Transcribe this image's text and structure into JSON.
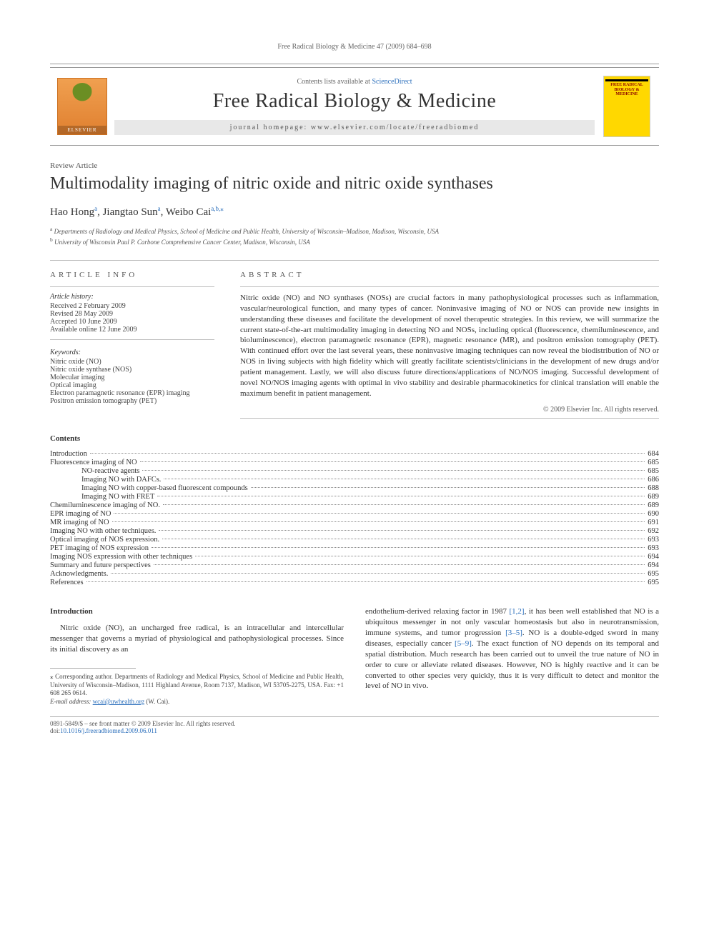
{
  "running_head": "Free Radical Biology & Medicine 47 (2009) 684–698",
  "header": {
    "contents_prefix": "Contents lists available at ",
    "contents_link": "ScienceDirect",
    "journal_title": "Free Radical Biology & Medicine",
    "homepage_label": "journal homepage: www.elsevier.com/locate/freeradbiomed",
    "elsevier_label": "ELSEVIER",
    "cover_text1": "FREE RADICAL",
    "cover_text2": "BIOLOGY & MEDICINE"
  },
  "article": {
    "type": "Review Article",
    "title": "Multimodality imaging of nitric oxide and nitric oxide synthases",
    "authors_html_parts": {
      "a1": "Hao Hong",
      "a1_sup": "a",
      "sep1": ", ",
      "a2": "Jiangtao Sun",
      "a2_sup": "a",
      "sep2": ", ",
      "a3": "Weibo Cai",
      "a3_sup": "a,b,",
      "star": "⁎"
    },
    "affiliations": [
      {
        "sup": "a",
        "text": "Departments of Radiology and Medical Physics, School of Medicine and Public Health, University of Wisconsin–Madison, Madison, Wisconsin, USA"
      },
      {
        "sup": "b",
        "text": "University of Wisconsin Paul P. Carbone Comprehensive Cancer Center, Madison, Wisconsin, USA"
      }
    ]
  },
  "info": {
    "label": "ARTICLE INFO",
    "history_head": "Article history:",
    "history": [
      "Received 2 February 2009",
      "Revised 28 May 2009",
      "Accepted 10 June 2009",
      "Available online 12 June 2009"
    ],
    "keywords_head": "Keywords:",
    "keywords": [
      "Nitric oxide (NO)",
      "Nitric oxide synthase (NOS)",
      "Molecular imaging",
      "Optical imaging",
      "Electron paramagnetic resonance (EPR) imaging",
      "Positron emission tomography (PET)"
    ]
  },
  "abstract": {
    "label": "ABSTRACT",
    "text": "Nitric oxide (NO) and NO synthases (NOSs) are crucial factors in many pathophysiological processes such as inflammation, vascular/neurological function, and many types of cancer. Noninvasive imaging of NO or NOS can provide new insights in understanding these diseases and facilitate the development of novel therapeutic strategies. In this review, we will summarize the current state-of-the-art multimodality imaging in detecting NO and NOSs, including optical (fluorescence, chemiluminescence, and bioluminescence), electron paramagnetic resonance (EPR), magnetic resonance (MR), and positron emission tomography (PET). With continued effort over the last several years, these noninvasive imaging techniques can now reveal the biodistribution of NO or NOS in living subjects with high fidelity which will greatly facilitate scientists/clinicians in the development of new drugs and/or patient management. Lastly, we will also discuss future directions/applications of NO/NOS imaging. Successful development of novel NO/NOS imaging agents with optimal in vivo stability and desirable pharmacokinetics for clinical translation will enable the maximum benefit in patient management.",
    "copyright": "© 2009 Elsevier Inc. All rights reserved."
  },
  "contents": {
    "head": "Contents",
    "items": [
      {
        "label": "Introduction",
        "page": "684",
        "indent": 0
      },
      {
        "label": "Fluorescence imaging of NO",
        "page": "685",
        "indent": 0
      },
      {
        "label": "NO-reactive agents",
        "page": "685",
        "indent": 2
      },
      {
        "label": "Imaging NO with DAFCs.",
        "page": "686",
        "indent": 2
      },
      {
        "label": "Imaging NO with copper-based fluorescent compounds",
        "page": "688",
        "indent": 2
      },
      {
        "label": "Imaging NO with FRET",
        "page": "689",
        "indent": 2
      },
      {
        "label": "Chemiluminescence imaging of NO.",
        "page": "689",
        "indent": 0
      },
      {
        "label": "EPR imaging of NO",
        "page": "690",
        "indent": 0
      },
      {
        "label": "MR imaging of NO",
        "page": "691",
        "indent": 0
      },
      {
        "label": "Imaging NO with other techniques.",
        "page": "692",
        "indent": 0
      },
      {
        "label": "Optical imaging of NOS expression.",
        "page": "693",
        "indent": 0
      },
      {
        "label": "PET imaging of NOS expression",
        "page": "693",
        "indent": 0
      },
      {
        "label": "Imaging NOS expression with other techniques",
        "page": "694",
        "indent": 0
      },
      {
        "label": "Summary and future perspectives",
        "page": "694",
        "indent": 0
      },
      {
        "label": "Acknowledgments.",
        "page": "695",
        "indent": 0
      },
      {
        "label": "References",
        "page": "695",
        "indent": 0
      }
    ]
  },
  "body": {
    "intro_head": "Introduction",
    "col1_p1": "Nitric oxide (NO), an uncharged free radical, is an intracellular and intercellular messenger that governs a myriad of physiological and pathophysiological processes. Since its initial discovery as an",
    "col2_p1_a": "endothelium-derived relaxing factor in 1987 ",
    "col2_ref1": "[1,2]",
    "col2_p1_b": ", it has been well established that NO is a ubiquitous messenger in not only vascular homeostasis but also in neurotransmission, immune systems, and tumor progression ",
    "col2_ref2": "[3–5]",
    "col2_p1_c": ". NO is a double-edged sword in many diseases, especially cancer ",
    "col2_ref3": "[5–9]",
    "col2_p1_d": ". The exact function of NO depends on its temporal and spatial distribution. Much research has been carried out to unveil the true nature of NO in order to cure or alleviate related diseases. However, NO is highly reactive and it can be converted to other species very quickly, thus it is very difficult to detect and monitor the level of NO in vivo."
  },
  "corr": {
    "star": "⁎",
    "text": " Corresponding author. Departments of Radiology and Medical Physics, School of Medicine and Public Health, University of Wisconsin–Madison, 1111 Highland Avenue, Room 7137, Madison, WI 53705-2275, USA. Fax: +1 608 265 0614.",
    "email_label": "E-mail address: ",
    "email": "wcai@uwhealth.org",
    "email_suffix": " (W. Cai)."
  },
  "footer": {
    "line1": "0891-5849/$ – see front matter © 2009 Elsevier Inc. All rights reserved.",
    "doi_prefix": "doi:",
    "doi": "10.1016/j.freeradbiomed.2009.06.011"
  },
  "colors": {
    "link": "#2a6ebb",
    "text": "#333333",
    "rule": "#999999",
    "cover_bg": "#ffd800"
  }
}
